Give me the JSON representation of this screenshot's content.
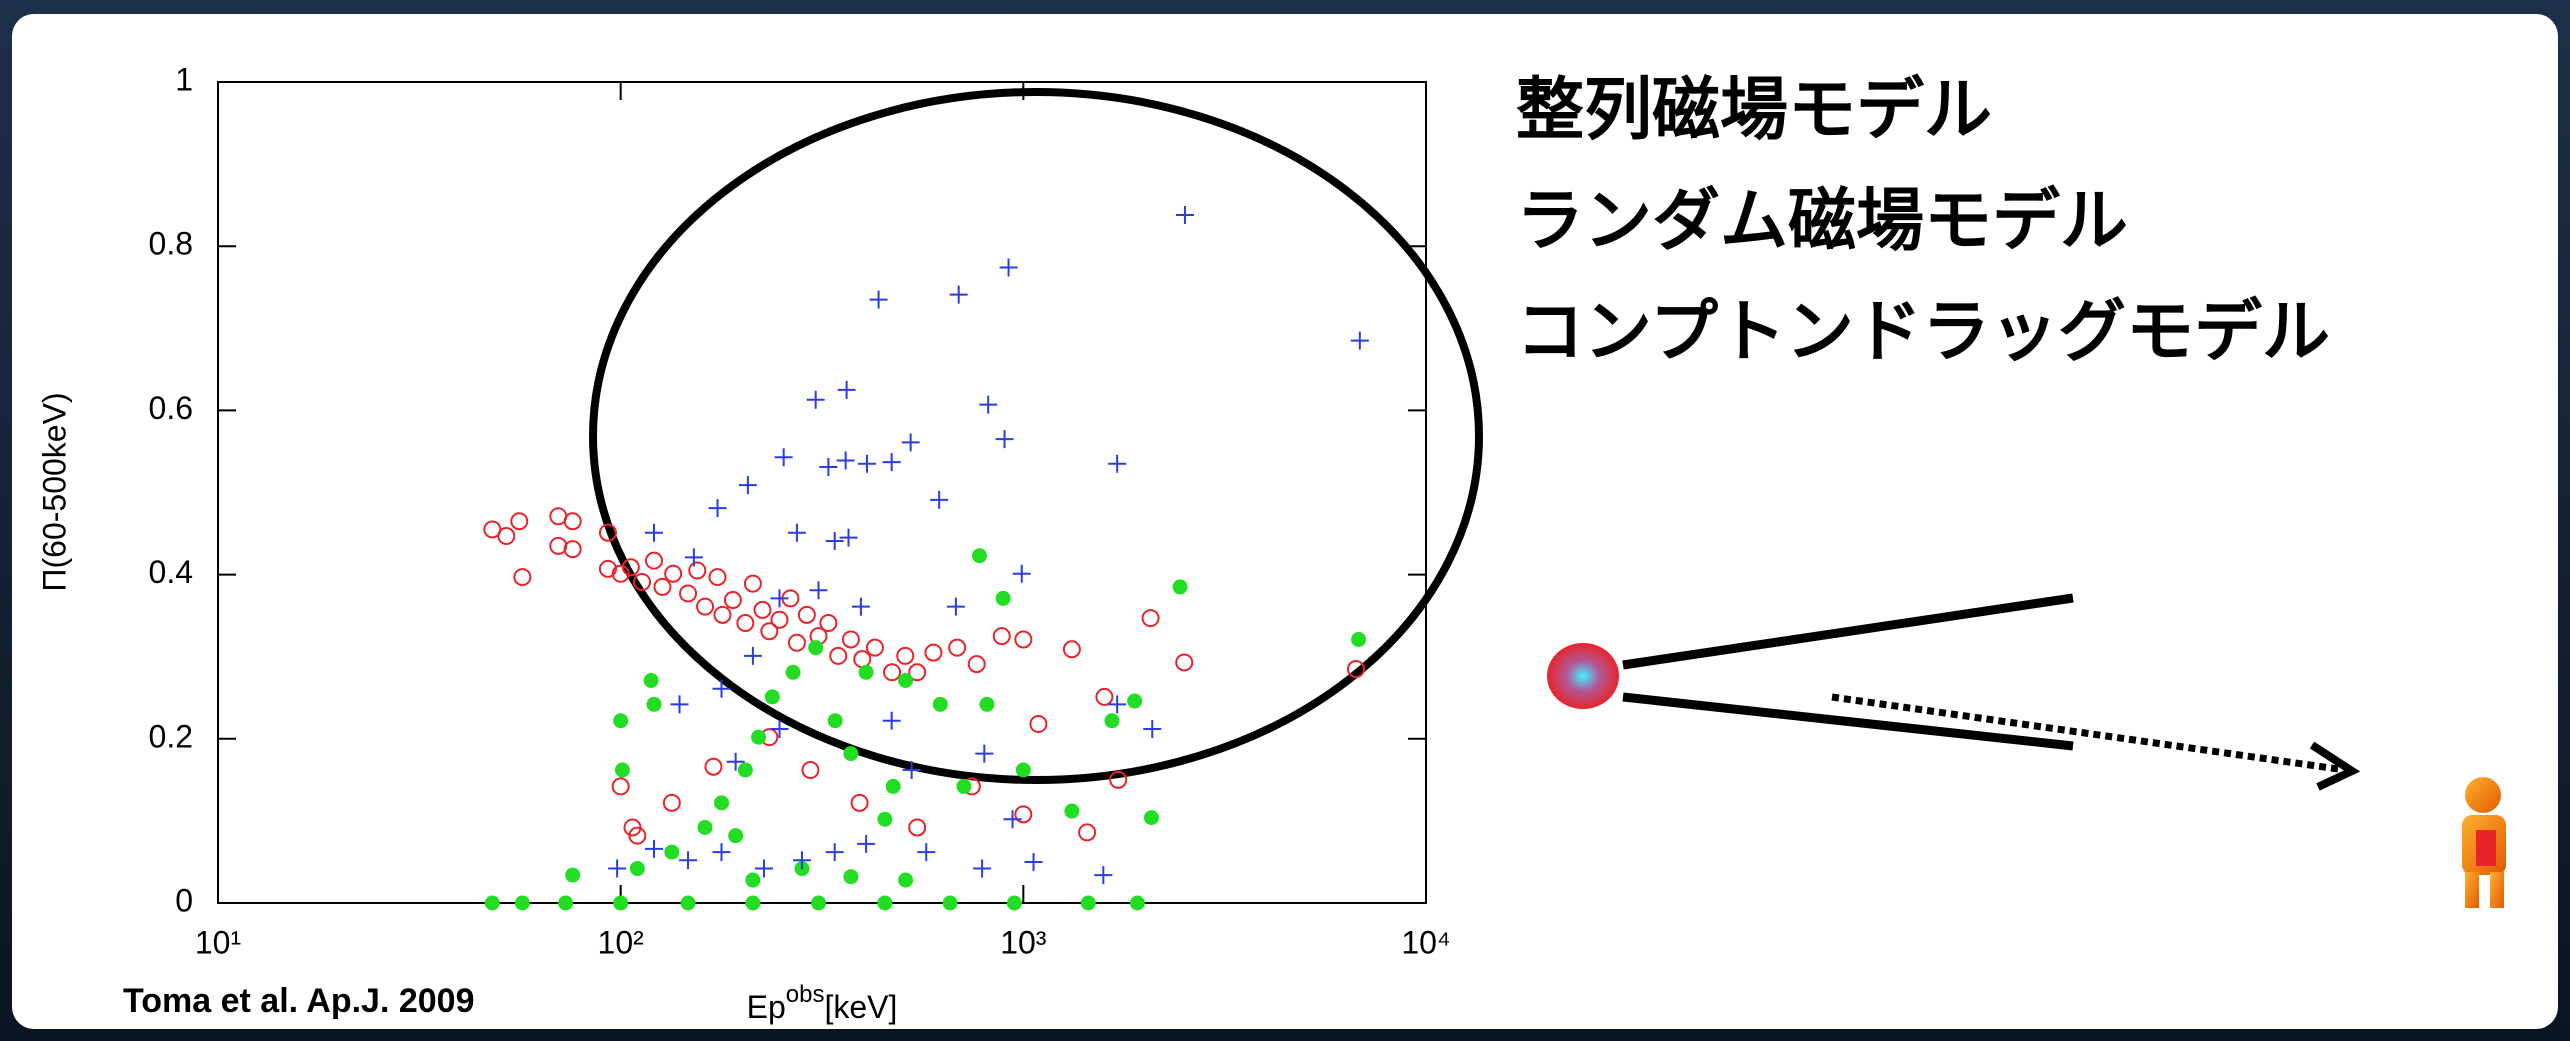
{
  "chart_data": {
    "type": "scatter",
    "xscale": "log",
    "xlim": [
      10,
      10000
    ],
    "xticks": [
      {
        "value": 10,
        "label": "10¹"
      },
      {
        "value": 100,
        "label": "10²"
      },
      {
        "value": 1000,
        "label": "10³"
      },
      {
        "value": 10000,
        "label": "10⁴"
      }
    ],
    "ylim": [
      0,
      1
    ],
    "yticks": [
      0,
      0.2,
      0.4,
      0.6,
      0.8,
      1
    ],
    "xlabel": {
      "text": "Ep",
      "superscript": "obs",
      "suffix": "[keV]"
    },
    "ylabel": "Π(60-500keV)",
    "citation": "Toma et al. Ap.J. 2009",
    "series": [
      {
        "name": "整列磁場モデル",
        "color": "#e8232a",
        "marker": "circle-open",
        "x": [
          48,
          52,
          56,
          57,
          70,
          70,
          76,
          76,
          93,
          93,
          100,
          106,
          113,
          121,
          127,
          135,
          147,
          155,
          162,
          174,
          179,
          190,
          204,
          213,
          225,
          234,
          248,
          264,
          274,
          290,
          310,
          328,
          347,
          373,
          398,
          428,
          472,
          509,
          545,
          598,
          685,
          766,
          884,
          1000,
          1320,
          2070,
          2510,
          100,
          110,
          134,
          170,
          234,
          296,
          392,
          545,
          745,
          1000,
          1440,
          1720,
          6700,
          1090,
          1590,
          107
        ],
        "values": [
          0.455,
          0.447,
          0.465,
          0.397,
          0.471,
          0.435,
          0.465,
          0.431,
          0.451,
          0.407,
          0.401,
          0.409,
          0.391,
          0.417,
          0.385,
          0.401,
          0.377,
          0.405,
          0.361,
          0.397,
          0.351,
          0.369,
          0.341,
          0.389,
          0.357,
          0.331,
          0.345,
          0.371,
          0.317,
          0.351,
          0.325,
          0.341,
          0.301,
          0.321,
          0.297,
          0.311,
          0.281,
          0.301,
          0.281,
          0.305,
          0.311,
          0.291,
          0.325,
          0.321,
          0.309,
          0.347,
          0.293,
          0.142,
          0.082,
          0.122,
          0.166,
          0.202,
          0.162,
          0.122,
          0.092,
          0.142,
          0.108,
          0.086,
          0.15,
          0.285,
          0.218,
          0.251,
          0.092
        ]
      },
      {
        "name": "ランダム磁場モデル",
        "color": "#22dd22",
        "marker": "dot",
        "x": [
          48,
          57,
          73,
          100,
          147,
          213,
          310,
          453,
          658,
          950,
          1450,
          1920,
          100,
          121,
          119,
          101,
          110,
          134,
          162,
          178,
          204,
          220,
          238,
          268,
          305,
          341,
          373,
          407,
          475,
          510,
          622,
          712,
          812,
          891,
          778,
          1000,
          1320,
          1660,
          1890,
          2080,
          2450,
          6800,
          76,
          213,
          282,
          373,
          510,
          193,
          453
        ],
        "values": [
          0,
          0,
          0,
          0,
          0,
          0,
          0,
          0,
          0,
          0,
          0,
          0,
          0.222,
          0.242,
          0.271,
          0.162,
          0.042,
          0.062,
          0.092,
          0.122,
          0.162,
          0.202,
          0.251,
          0.281,
          0.311,
          0.222,
          0.182,
          0.281,
          0.142,
          0.271,
          0.242,
          0.142,
          0.242,
          0.371,
          0.423,
          0.162,
          0.112,
          0.222,
          0.246,
          0.104,
          0.385,
          0.321,
          0.034,
          0.028,
          0.042,
          0.032,
          0.028,
          0.082,
          0.102
        ]
      },
      {
        "name": "コンプトンドラッグモデル",
        "color": "#2a3ee0",
        "marker": "plus",
        "x": [
          2520,
          6850,
          919,
          691,
          437,
          305,
          364,
          818,
          898,
          1710,
          525,
          254,
          328,
          362,
          409,
          471,
          207,
          174,
          618,
          121,
          152,
          274,
          340,
          368,
          248,
          395,
          680,
          991,
          310,
          213,
          178,
          140,
          193,
          248,
          471,
          528,
          800,
          940,
          2090,
          1710,
          98,
          121,
          147,
          178,
          227,
          282,
          340,
          407,
          574,
          790,
          1580,
          1060
        ],
        "values": [
          0.838,
          0.685,
          0.774,
          0.741,
          0.735,
          0.613,
          0.625,
          0.607,
          0.565,
          0.535,
          0.561,
          0.543,
          0.531,
          0.539,
          0.535,
          0.537,
          0.509,
          0.481,
          0.491,
          0.451,
          0.421,
          0.451,
          0.441,
          0.445,
          0.371,
          0.361,
          0.361,
          0.401,
          0.381,
          0.301,
          0.261,
          0.242,
          0.172,
          0.212,
          0.222,
          0.162,
          0.182,
          0.102,
          0.212,
          0.242,
          0.042,
          0.066,
          0.052,
          0.062,
          0.042,
          0.052,
          0.062,
          0.072,
          0.062,
          0.042,
          0.034,
          0.05
        ]
      }
    ]
  }
}
